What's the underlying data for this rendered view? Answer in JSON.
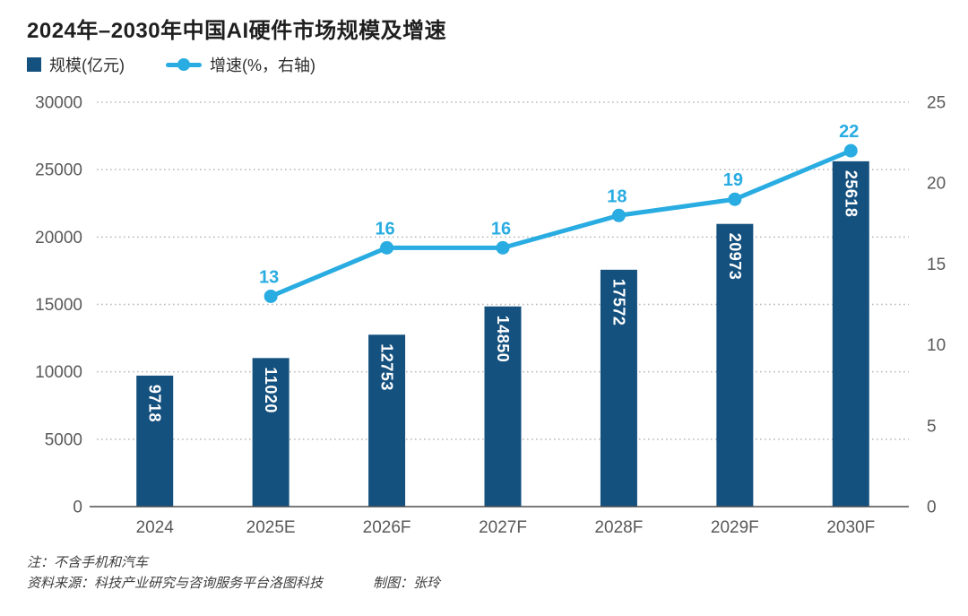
{
  "title": "2024年–2030年中国AI硬件市场规模及增速",
  "legend": [
    {
      "label": "规模(亿元)",
      "type": "bar"
    },
    {
      "label": "增速(%，右轴)",
      "type": "line"
    }
  ],
  "colors": {
    "bar": "#15517f",
    "line": "#29ace1",
    "bar_label": "#ffffff",
    "axis_text": "#595959",
    "grid": "#b8b8b8",
    "baseline": "#4d4d4d",
    "title": "#1f1f1f",
    "footer": "#3d3d3d"
  },
  "chart_data": {
    "type": "bar",
    "subtype": "bar+line-dual-axis",
    "title": "2024年–2030年中国AI硬件市场规模及增速",
    "categories": [
      "2024",
      "2025E",
      "2026F",
      "2027F",
      "2028F",
      "2029F",
      "2030F"
    ],
    "series": [
      {
        "name": "规模(亿元)",
        "type": "bar",
        "axis": "left",
        "values": [
          9718,
          11020,
          12753,
          14850,
          17572,
          20973,
          25618
        ]
      },
      {
        "name": "增速(%，右轴)",
        "type": "line",
        "axis": "right",
        "values": [
          null,
          13,
          16,
          16,
          18,
          19,
          22
        ]
      }
    ],
    "left_axis": {
      "min": 0,
      "max": 30000,
      "step": 5000,
      "ticks": [
        0,
        5000,
        10000,
        15000,
        20000,
        25000,
        30000
      ]
    },
    "right_axis": {
      "min": 0,
      "max": 25,
      "step": 5,
      "ticks": [
        0,
        5,
        10,
        15,
        20,
        25
      ]
    },
    "grid": "dotted-horizontal",
    "legend_position": "top-left"
  },
  "footer": {
    "note": "注：不含手机和汽车",
    "source": "资料来源：科技产业研究与咨询服务平台洛图科技",
    "credit": "制图：张玲"
  }
}
